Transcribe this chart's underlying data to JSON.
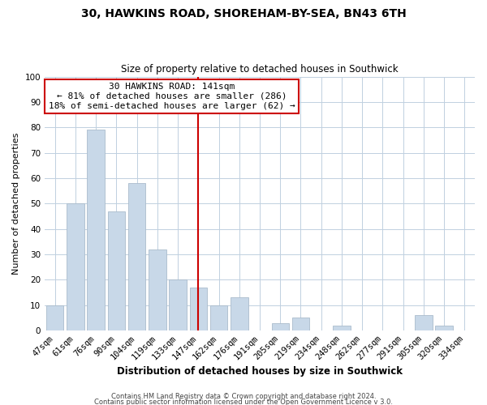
{
  "title": "30, HAWKINS ROAD, SHOREHAM-BY-SEA, BN43 6TH",
  "subtitle": "Size of property relative to detached houses in Southwick",
  "xlabel": "Distribution of detached houses by size in Southwick",
  "ylabel": "Number of detached properties",
  "footer1": "Contains HM Land Registry data © Crown copyright and database right 2024.",
  "footer2": "Contains public sector information licensed under the Open Government Licence v 3.0.",
  "categories": [
    "47sqm",
    "61sqm",
    "76sqm",
    "90sqm",
    "104sqm",
    "119sqm",
    "133sqm",
    "147sqm",
    "162sqm",
    "176sqm",
    "191sqm",
    "205sqm",
    "219sqm",
    "234sqm",
    "248sqm",
    "262sqm",
    "277sqm",
    "291sqm",
    "305sqm",
    "320sqm",
    "334sqm"
  ],
  "values": [
    10,
    50,
    79,
    47,
    58,
    32,
    20,
    17,
    10,
    13,
    0,
    3,
    5,
    0,
    2,
    0,
    0,
    0,
    6,
    2,
    0
  ],
  "bar_color": "#c8d8e8",
  "bar_edge_color": "#aabccc",
  "vline_x_index": 7,
  "vline_color": "#cc0000",
  "annotation_box_text": "30 HAWKINS ROAD: 141sqm\n← 81% of detached houses are smaller (286)\n18% of semi-detached houses are larger (62) →",
  "annotation_box_edge_color": "#cc0000",
  "ylim": [
    0,
    100
  ],
  "yticks": [
    0,
    10,
    20,
    30,
    40,
    50,
    60,
    70,
    80,
    90,
    100
  ],
  "background_color": "#ffffff",
  "grid_color": "#c0d0e0",
  "title_fontsize": 10,
  "subtitle_fontsize": 8.5,
  "xlabel_fontsize": 8.5,
  "ylabel_fontsize": 8,
  "tick_fontsize": 7.5,
  "footer_fontsize": 6
}
